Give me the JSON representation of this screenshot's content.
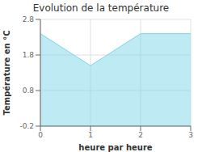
{
  "chart_data": {
    "type": "area",
    "title": "Evolution de la température",
    "xlabel": "heure par heure",
    "ylabel": "Température en °C",
    "x": [
      0,
      1,
      2,
      3
    ],
    "values": [
      2.4,
      1.5,
      2.4,
      2.4
    ],
    "xlim": [
      0,
      3
    ],
    "ylim": [
      -0.2,
      2.8
    ],
    "xticks": [
      0,
      1,
      2,
      3
    ],
    "yticks": [
      -0.2,
      0.8,
      1.8,
      2.8
    ],
    "color": "#7dd6e8",
    "grid": true
  }
}
